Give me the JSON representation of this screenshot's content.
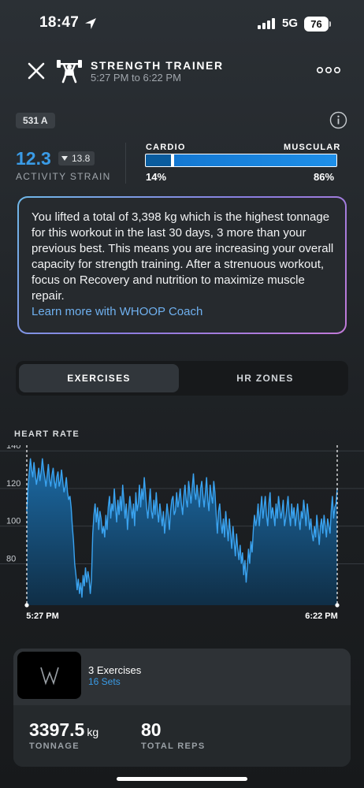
{
  "status_bar": {
    "time": "18:47",
    "network": "5G",
    "battery": "76"
  },
  "header": {
    "title": "STRENGTH TRAINER",
    "subtitle": "5:27 PM to 6:22 PM"
  },
  "tag": "531 A",
  "strain": {
    "value": "12.3",
    "delta": "13.8",
    "label": "ACTIVITY STRAIN"
  },
  "cardio_muscular": {
    "left_label": "CARDIO",
    "right_label": "MUSCULAR",
    "left_value": "14%",
    "right_value": "86%",
    "cardio_fraction": 0.14
  },
  "insight": {
    "text": "You lifted a total of 3,398 kg which is the highest tonnage for this workout in the last 30 days, 3 more than your previous best. This means you are increasing your overall capacity for strength training. After a strenuous workout, focus on Recovery and nutrition to maximize muscle repair.",
    "link": "Learn more with WHOOP Coach"
  },
  "tabs": [
    {
      "label": "EXERCISES",
      "active": true
    },
    {
      "label": "HR ZONES",
      "active": false
    }
  ],
  "heart_rate": {
    "title": "HEART RATE",
    "start_label": "5:27 PM",
    "end_label": "6:22 PM"
  },
  "chart_data": {
    "type": "area",
    "title": "HEART RATE",
    "yticks": [
      140,
      120,
      100,
      80
    ],
    "ylim": [
      58,
      143
    ],
    "xlim": [
      0,
      55
    ],
    "x_start_label": "5:27 PM",
    "x_end_label": "6:22 PM",
    "color": "#2d8fd8",
    "series": [
      {
        "values": [
          108,
          120,
          128,
          136,
          130,
          126,
          134,
          128,
          122,
          126,
          131,
          124,
          129,
          136,
          130,
          126,
          121,
          127,
          133,
          125,
          121,
          127,
          131,
          124,
          120,
          126,
          129,
          121,
          124,
          130,
          124,
          118,
          121,
          126,
          118,
          114,
          116,
          110,
          100,
          92,
          80,
          74,
          66,
          72,
          64,
          70,
          62,
          74,
          68,
          78,
          70,
          76,
          72,
          64,
          72,
          96,
          106,
          112,
          102,
          110,
          98,
          108,
          104,
          96,
          100,
          94,
          106,
          98,
          110,
          116,
          104,
          112,
          108,
          120,
          110,
          102,
          114,
          106,
          116,
          108,
          122,
          114,
          104,
          112,
          98,
          108,
          116,
          110,
          104,
          112,
          100,
          118,
          108,
          112,
          122,
          110,
          120,
          114,
          126,
          118,
          110,
          104,
          112,
          120,
          108,
          104,
          114,
          106,
          118,
          108,
          102,
          112,
          106,
          100,
          108,
          96,
          104,
          112,
          106,
          98,
          108,
          114,
          116,
          106,
          108,
          118,
          110,
          114,
          120,
          112,
          106,
          116,
          122,
          114,
          110,
          124,
          118,
          112,
          120,
          128,
          118,
          114,
          122,
          116,
          110,
          120,
          124,
          116,
          110,
          118,
          126,
          114,
          108,
          122,
          116,
          112,
          124,
          118,
          106,
          96,
          108,
          112,
          102,
          96,
          104,
          94,
          108,
          100,
          92,
          104,
          96,
          88,
          100,
          92,
          84,
          96,
          88,
          82,
          90,
          80,
          86,
          74,
          82,
          70,
          78,
          88,
          80,
          92,
          86,
          98,
          106,
          100,
          104,
          112,
          100,
          108,
          116,
          104,
          110,
          116,
          106,
          100,
          112,
          118,
          104,
          110,
          106,
          100,
          112,
          104,
          116,
          110,
          104,
          108,
          114,
          100,
          104,
          110,
          116,
          106,
          100,
          112,
          104,
          110,
          100,
          106,
          112,
          104,
          98,
          108,
          104,
          114,
          108,
          100,
          112,
          106,
          98,
          104,
          96,
          92,
          100,
          94,
          106,
          98,
          90,
          100,
          104,
          96,
          106,
          100,
          94,
          104,
          100,
          96,
          108,
          116,
          104,
          110,
          112,
          120
        ]
      }
    ]
  },
  "summary": {
    "logo_text": "W",
    "exercise_count": "3 Exercises",
    "sets": "16 Sets",
    "tonnage": "3397.5",
    "tonnage_unit": "kg",
    "tonnage_label": "TONNAGE",
    "reps": "80",
    "reps_label": "TOTAL REPS"
  },
  "icons": {
    "close": "close-icon",
    "trainer": "weightlifter-icon",
    "more": "more-options-icon",
    "info": "info-icon",
    "location": "location-arrow-icon"
  }
}
